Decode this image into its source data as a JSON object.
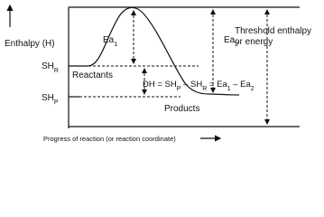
{
  "axis": {
    "y_label": "Enthalpy (H)",
    "x_label": "Progress of reaction (or reaction coordinate)"
  },
  "levels": {
    "reactant": {
      "base": "SH",
      "sub": "R"
    },
    "product": {
      "base": "SH",
      "sub": "P"
    }
  },
  "labels": {
    "reactants": "Reactants",
    "products": "Products"
  },
  "activation": [
    {
      "base": "Ea",
      "sub": "1"
    },
    {
      "base": "Ea",
      "sub": "2"
    }
  ],
  "threshold": [
    "Threshold enthalpy",
    "or energy"
  ],
  "equation": [
    "DH = SH",
    "P",
    " – SH",
    "R",
    " = Ea",
    "1",
    " – Ea",
    "2"
  ]
}
